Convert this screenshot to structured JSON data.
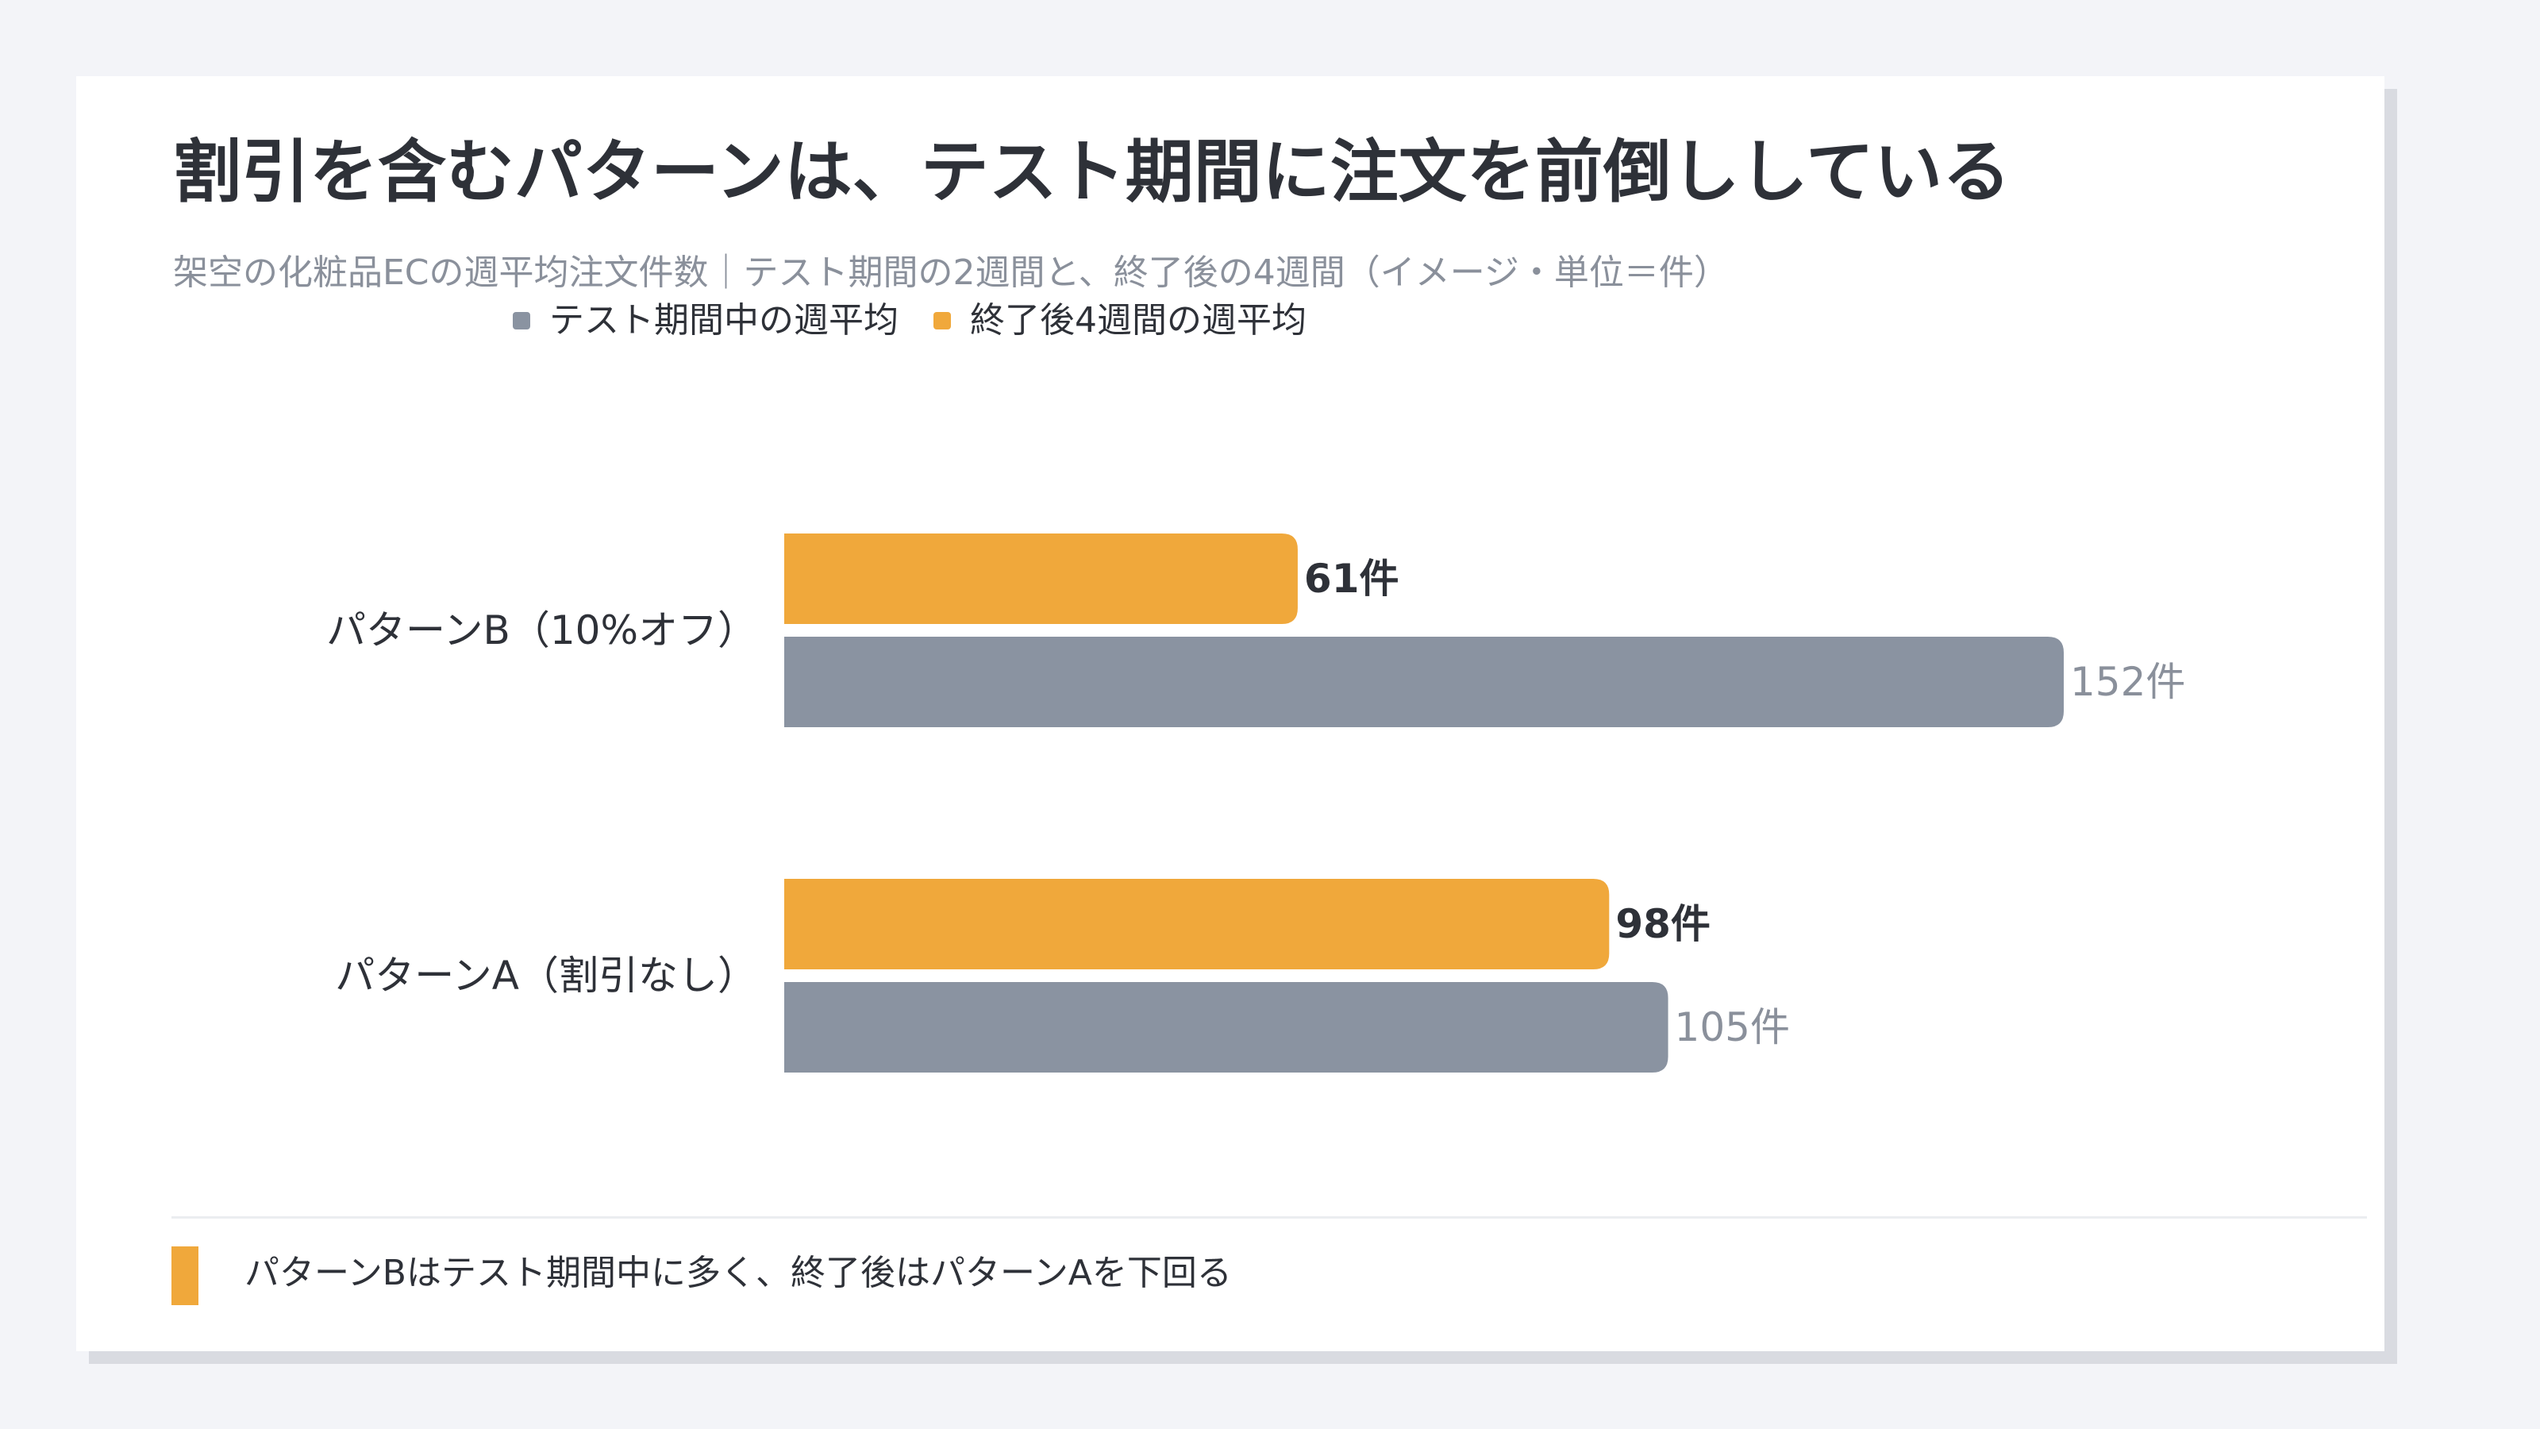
{
  "title": "割引を含むパターンは、テスト期間に注文を前倒ししている",
  "subtitle": "架空の化粧品ECの週平均注文件数｜テスト期間の2週間と、終了後の4週間（イメージ・単位＝件）",
  "legend": {
    "items": [
      {
        "label": "テスト期間中の週平均",
        "color": "#8a93a1"
      },
      {
        "label": "終了後4週間の週平均",
        "color": "#f0a83b"
      }
    ]
  },
  "note": {
    "text": "パターンBはテスト期間中に多く、終了後はパターンAを下回る"
  },
  "chart_data": {
    "type": "bar",
    "orientation": "horizontal",
    "title": "割引を含むパターンは、テスト期間に注文を前倒ししている",
    "unit": "件",
    "categories": [
      "パターンB（10%オフ）",
      "パターンA（割引なし）"
    ],
    "series": [
      {
        "name": "終了後4週間の週平均",
        "color": "#f0a83b",
        "values": [
          61,
          98
        ],
        "labels": [
          "61件",
          "98件"
        ]
      },
      {
        "name": "テスト期間中の週平均",
        "color": "#8a93a1",
        "values": [
          152,
          105
        ],
        "labels": [
          "152件",
          "105件"
        ]
      }
    ],
    "xlim": [
      0,
      152
    ],
    "grid": false,
    "legend_position": "top-center"
  }
}
